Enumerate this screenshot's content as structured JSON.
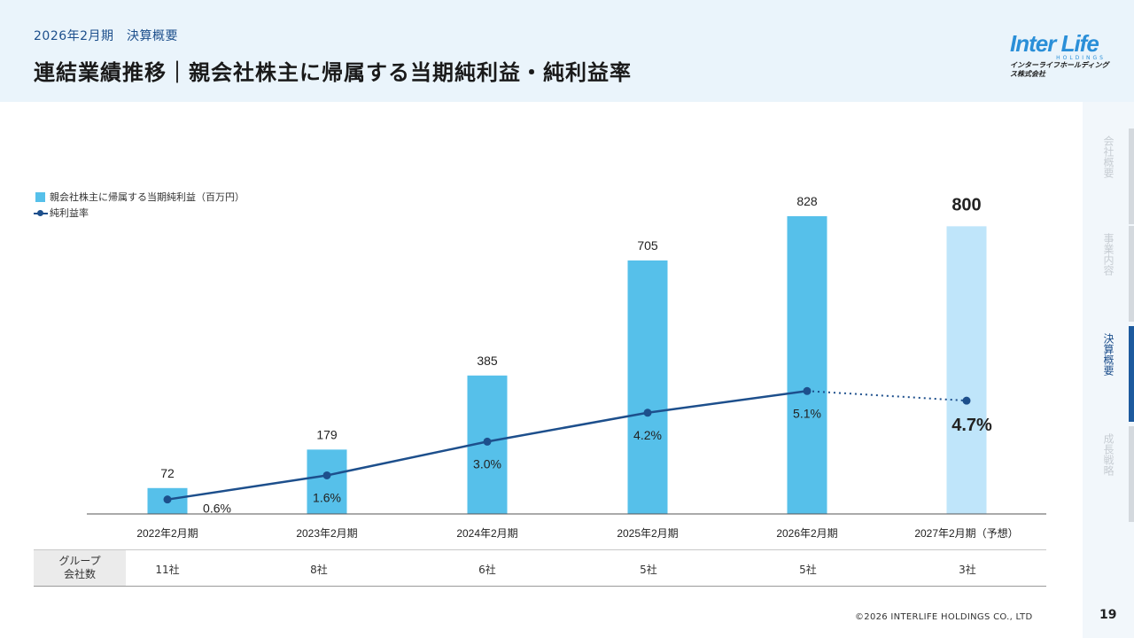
{
  "header": {
    "subtitle": "2026年2月期　決算概要",
    "title": "連結業績推移｜親会社株主に帰属する当期純利益・純利益率"
  },
  "logo": {
    "main": "Inter Life",
    "sub": "HOLDINGS",
    "jp": "インターライフホールディングス株式会社"
  },
  "side_nav": [
    {
      "label": "会社概要",
      "active": false
    },
    {
      "label": "事業内容",
      "active": false
    },
    {
      "label": "決算概要",
      "active": true
    },
    {
      "label": "成長戦略",
      "active": false
    }
  ],
  "page_number": "19",
  "copyright": "©2026 INTERLIFE HOLDINGS CO., LTD",
  "legend": {
    "bar_label": "親会社株主に帰属する当期純利益（百万円）",
    "line_label": "純利益率"
  },
  "chart_data": {
    "type": "bar",
    "categories": [
      "2022年2月期",
      "2023年2月期",
      "2024年2月期",
      "2025年2月期",
      "2026年2月期",
      "2027年2月期（予想）"
    ],
    "series": [
      {
        "name": "親会社株主に帰属する当期純利益（百万円）",
        "type": "bar",
        "values": [
          72,
          179,
          385,
          705,
          828,
          800
        ],
        "labels": [
          "72",
          "179",
          "385",
          "705",
          "828",
          "800"
        ]
      },
      {
        "name": "純利益率",
        "type": "line",
        "values": [
          0.6,
          1.6,
          3.0,
          4.2,
          5.1,
          4.7
        ],
        "labels": [
          "0.6%",
          "1.6%",
          "3.0%",
          "4.2%",
          "5.1%",
          "4.7%"
        ]
      }
    ],
    "forecast_index": 5,
    "bar_ylim": [
      0,
      950
    ],
    "line_ylim": [
      0,
      12.5
    ],
    "colors": {
      "bar": "#56c0ea",
      "bar_forecast": "#bfe5fa",
      "line": "#1d4f8c",
      "axis": "#555555"
    }
  },
  "group_table": {
    "label": "グループ\n会社数",
    "label_line1": "グループ",
    "label_line2": "会社数",
    "counts": [
      "11社",
      "8社",
      "6社",
      "5社",
      "5社",
      "3社"
    ]
  }
}
